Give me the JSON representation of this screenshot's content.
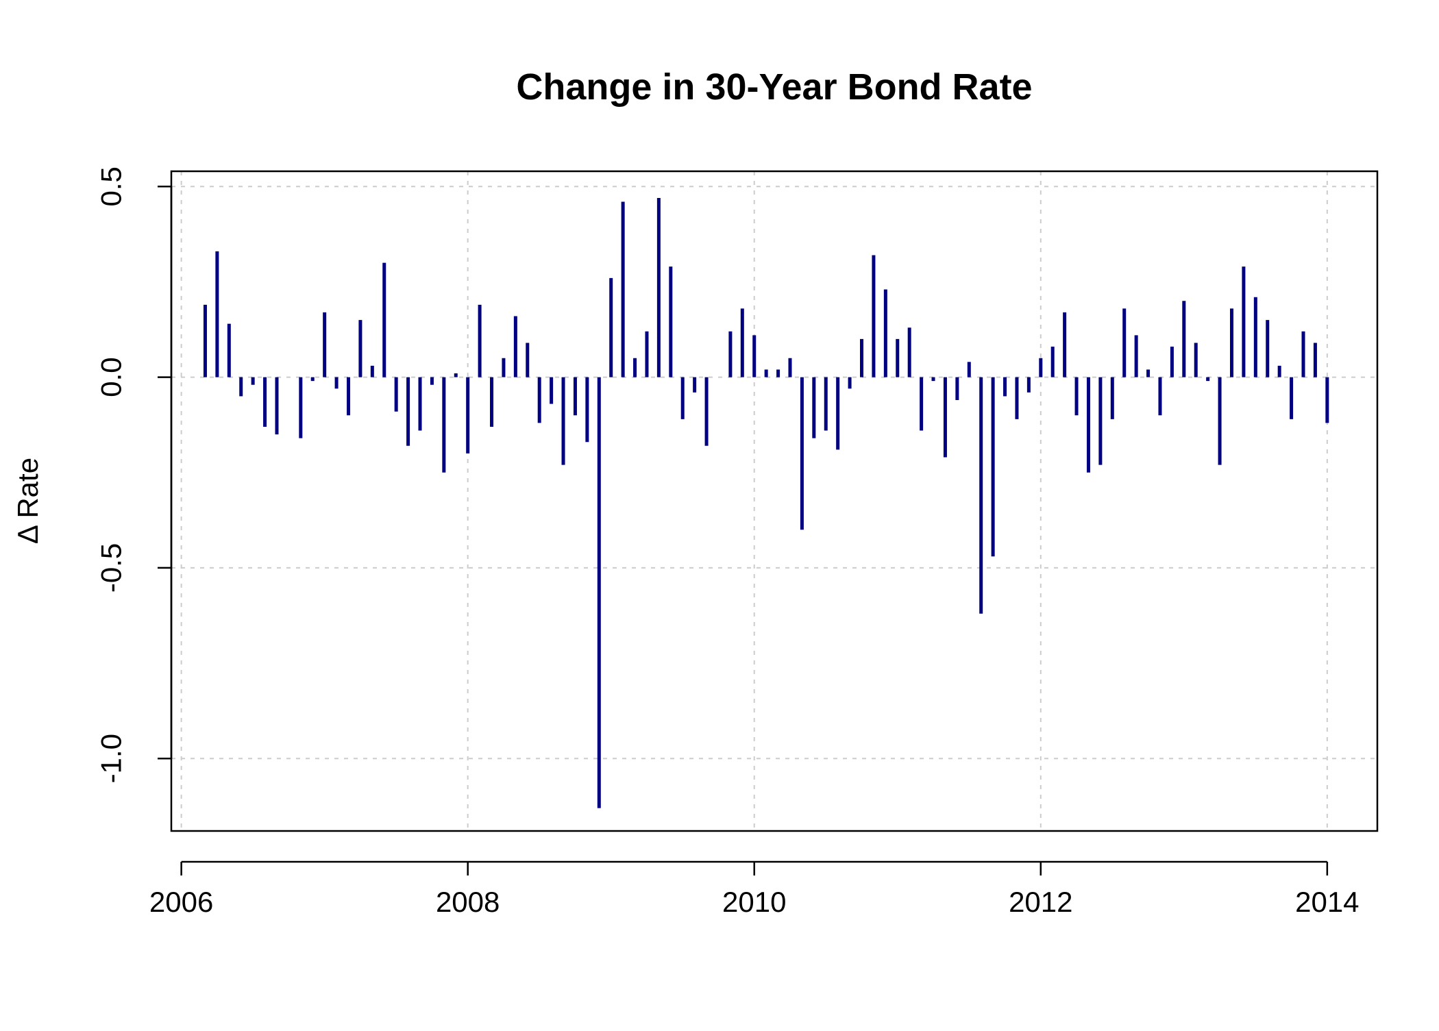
{
  "chart_data": {
    "type": "bar",
    "title": "Change in 30-Year Bond Rate",
    "xlabel": "",
    "ylabel": "Δ Rate",
    "xlim": [
      2005.93,
      2014.35
    ],
    "ylim": [
      -1.19,
      0.54
    ],
    "x_ticks": [
      "2006",
      "2008",
      "2010",
      "2012",
      "2014"
    ],
    "y_ticks": [
      "-1.0",
      "-0.5",
      "0.0",
      "0.5"
    ],
    "grid": true,
    "legend": "none",
    "color": "#000080",
    "x_start": "2006-03",
    "x_step": "1 month",
    "values": [
      0.19,
      0.33,
      0.14,
      -0.05,
      -0.02,
      -0.13,
      -0.15,
      0.0,
      -0.16,
      -0.01,
      0.17,
      -0.03,
      -0.1,
      0.15,
      0.03,
      0.3,
      -0.09,
      -0.18,
      -0.14,
      -0.02,
      -0.25,
      0.01,
      -0.2,
      0.19,
      -0.13,
      0.05,
      0.16,
      0.09,
      -0.12,
      -0.07,
      -0.23,
      -0.1,
      -0.17,
      -1.13,
      0.26,
      0.46,
      0.05,
      0.12,
      0.47,
      0.29,
      -0.11,
      -0.04,
      -0.18,
      0.0,
      0.12,
      0.18,
      0.11,
      0.02,
      0.02,
      0.05,
      -0.4,
      -0.16,
      -0.14,
      -0.19,
      -0.03,
      0.1,
      0.32,
      0.23,
      0.1,
      0.13,
      -0.14,
      -0.01,
      -0.21,
      -0.06,
      0.04,
      -0.62,
      -0.47,
      -0.05,
      -0.11,
      -0.04,
      0.05,
      0.08,
      0.17,
      -0.1,
      -0.25,
      -0.23,
      -0.11,
      0.18,
      0.11,
      0.02,
      -0.1,
      0.08,
      0.2,
      0.09,
      -0.01,
      -0.23,
      0.18,
      0.29,
      0.21,
      0.15,
      0.03,
      -0.11,
      0.12,
      0.09,
      -0.12
    ]
  }
}
